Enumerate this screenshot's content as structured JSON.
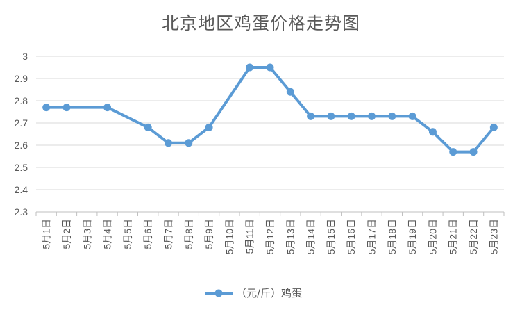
{
  "chart_data": {
    "type": "line",
    "title": "北京地区鸡蛋价格走势图",
    "categories": [
      "5月1日",
      "5月2日",
      "5月3日",
      "5月4日",
      "5月5日",
      "5月6日",
      "5月7日",
      "5月8日",
      "5月9日",
      "5月10日",
      "5月11日",
      "5月12日",
      "5月13日",
      "5月14日",
      "5月15日",
      "5月16日",
      "5月17日",
      "5月18日",
      "5月19日",
      "5月20日",
      "5月21日",
      "5月22日",
      "5月23日"
    ],
    "series": [
      {
        "name": "（元/斤）鸡蛋",
        "color": "#5b9bd5",
        "values": [
          2.77,
          2.77,
          null,
          2.77,
          null,
          2.68,
          2.61,
          2.61,
          2.68,
          null,
          2.95,
          2.95,
          2.84,
          2.73,
          2.73,
          2.73,
          2.73,
          2.73,
          2.73,
          2.66,
          2.57,
          2.57,
          2.68
        ]
      }
    ],
    "y_ticks": [
      "2.3",
      "2.4",
      "2.5",
      "2.6",
      "2.7",
      "2.8",
      "2.9",
      "3"
    ],
    "ylim": [
      2.3,
      3.0
    ],
    "grid": "horizontal",
    "legend_position": "bottom"
  },
  "colors": {
    "gridline": "#d9d9d9",
    "axis": "#bfbfbf",
    "text": "#595959"
  }
}
